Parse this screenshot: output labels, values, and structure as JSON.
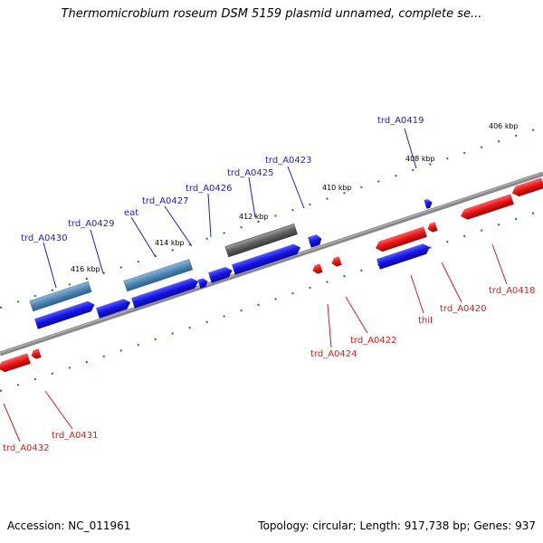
{
  "title": "Thermomicrobium roseum DSM 5159 plasmid unnamed, complete se...",
  "footer": {
    "accession_text": "Accession: NC_011961",
    "summary_text": "Topology: circular; Length: 917,738 bp; Genes: 937"
  },
  "colors": {
    "forward_gene": "#1414e6",
    "reverse_gene": "#e61414",
    "forward_label": "#1e1eb4",
    "reverse_label": "#c81e1e",
    "feature_steel": "#4f86b4",
    "feature_grey": "#5e5e5e",
    "backbone": "#808080",
    "tick": "#1e781e"
  },
  "scale_labels": [
    "406 kbp",
    "408 kbp",
    "410 kbp",
    "412 kbp",
    "414 kbp",
    "416 kbp"
  ],
  "forward_genes": [
    "trd_A0419",
    "trd_A0423",
    "trd_A0425",
    "trd_A0426",
    "trd_A0427",
    "eat",
    "trd_A0429",
    "trd_A0430"
  ],
  "reverse_genes": [
    "trd_A0418",
    "trd_A0420",
    "thiI",
    "trd_A0422",
    "trd_A0424",
    "trd_A0431",
    "trd_A0432"
  ]
}
